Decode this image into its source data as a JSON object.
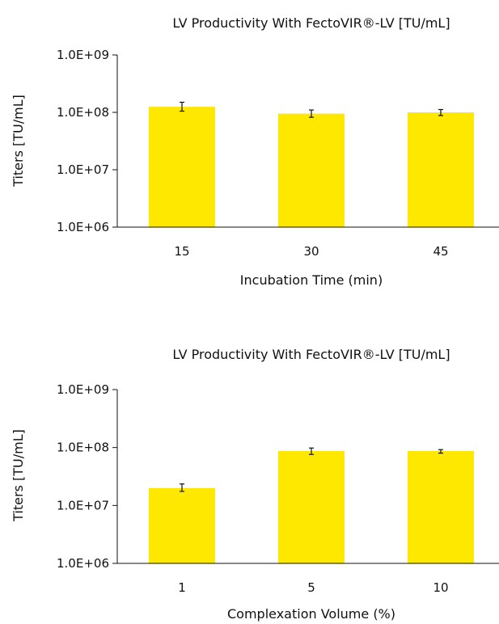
{
  "chart_data": [
    {
      "type": "bar",
      "title": "LV Productivity With FectoVIR®-LV [TU/mL]",
      "xlabel": "Incubation Time (min)",
      "ylabel": "Titers [TU/mL]",
      "y_scale": "log",
      "ylim": [
        1000000,
        1000000000
      ],
      "y_ticks": [
        "1.0E+06",
        "1.0E+07",
        "1.0E+08",
        "1.0E+09"
      ],
      "categories": [
        "15",
        "30",
        "45"
      ],
      "values": [
        125000000,
        95000000,
        100000000
      ],
      "error_low": [
        105000000,
        82000000,
        88000000
      ],
      "error_high": [
        150000000,
        110000000,
        112000000
      ],
      "bar_color": "#FFE800",
      "grid": false
    },
    {
      "type": "bar",
      "title": "LV Productivity With FectoVIR®-LV [TU/mL]",
      "xlabel": "Complexation Volume (%)",
      "ylabel": "Titers [TU/mL]",
      "y_scale": "log",
      "ylim": [
        1000000,
        1000000000
      ],
      "y_ticks": [
        "1.0E+06",
        "1.0E+07",
        "1.0E+08",
        "1.0E+09"
      ],
      "categories": [
        "1",
        "5",
        "10"
      ],
      "values": [
        20000000,
        87000000,
        87000000
      ],
      "error_low": [
        17500000,
        76000000,
        80000000
      ],
      "error_high": [
        23500000,
        98000000,
        92000000
      ],
      "bar_color": "#FFE800",
      "grid": false
    }
  ]
}
